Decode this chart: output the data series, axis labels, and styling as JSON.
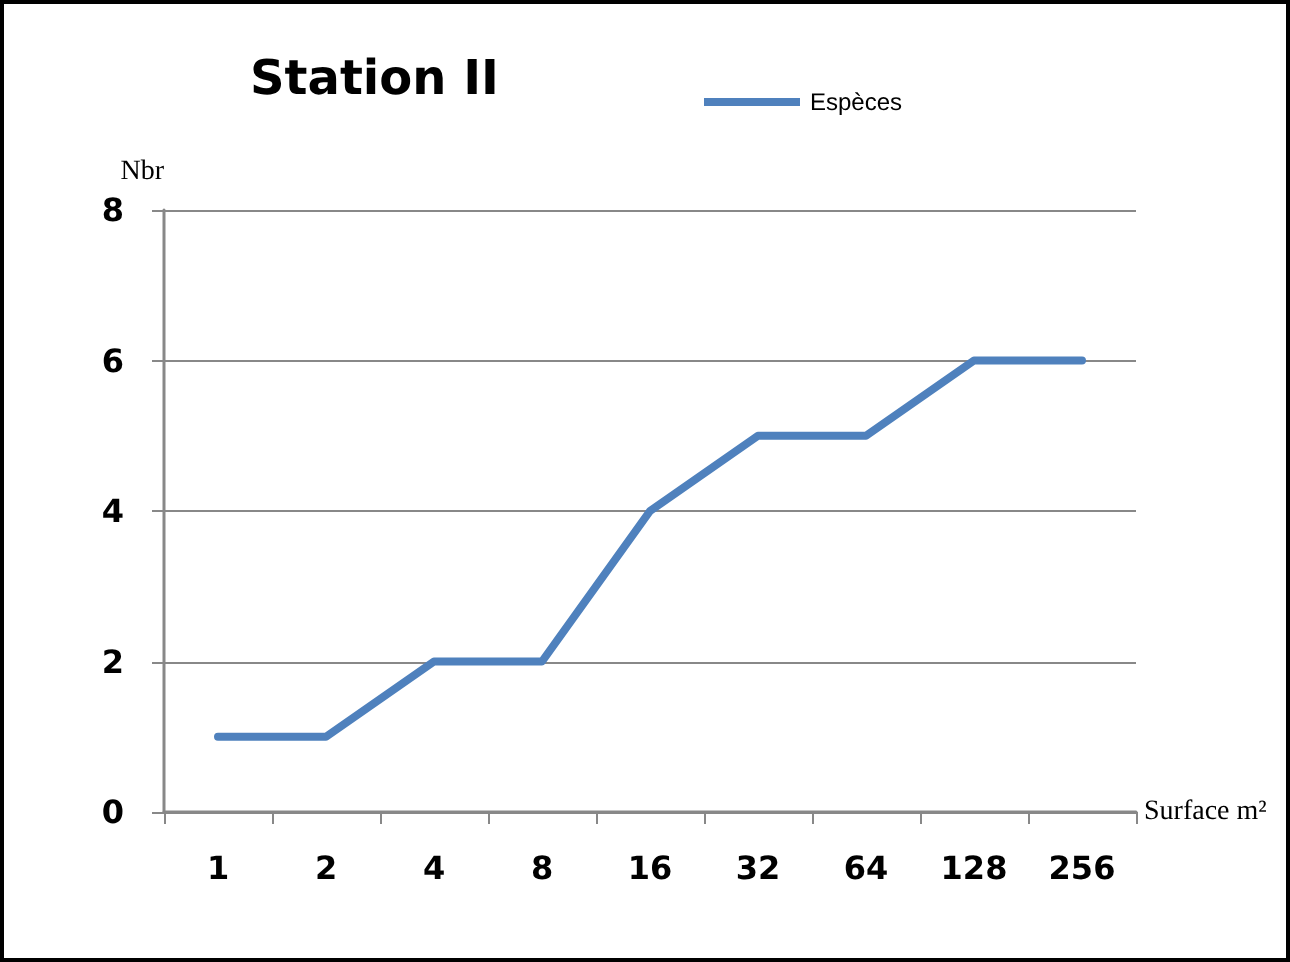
{
  "chart_data": {
    "type": "line",
    "title": "Station II",
    "xlabel": "Surface m²",
    "ylabel": "Nbr",
    "categories": [
      "1",
      "2",
      "4",
      "8",
      "16",
      "32",
      "64",
      "128",
      "256"
    ],
    "series": [
      {
        "name": "Espèces",
        "color": "#4f81bd",
        "values": [
          1,
          1,
          2,
          2,
          4,
          5,
          5,
          6,
          6
        ]
      }
    ],
    "ylim": [
      0,
      8
    ],
    "yticks": [
      0,
      2,
      4,
      6,
      8
    ],
    "grid": "y",
    "legend": "top",
    "marker": "none",
    "line_style": "solid"
  }
}
